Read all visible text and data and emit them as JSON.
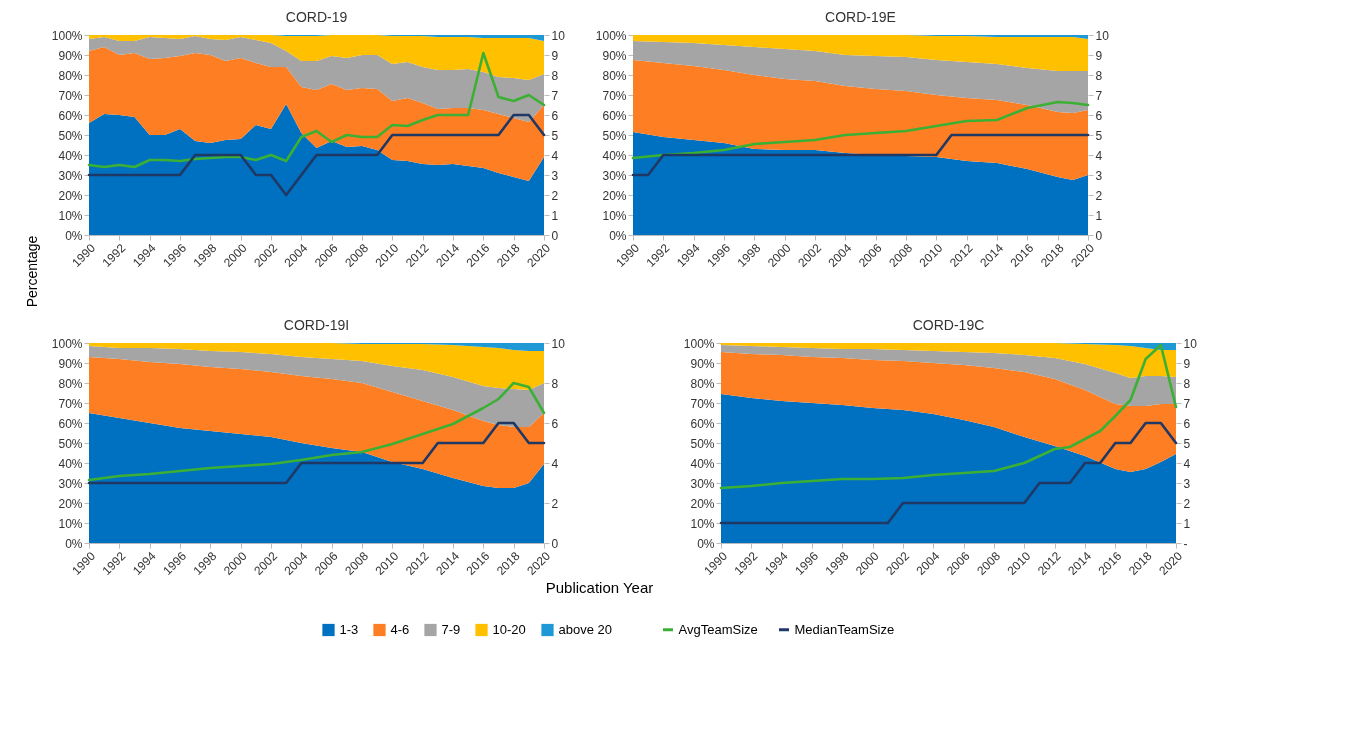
{
  "chart_data": [
    {
      "type": "area",
      "title": "CORD-19",
      "ylabel": "Percentage",
      "stacked": true,
      "legend": "bottom",
      "x": [
        1990,
        1991,
        1992,
        1993,
        1994,
        1995,
        1996,
        1997,
        1998,
        1999,
        2000,
        2001,
        2002,
        2003,
        2004,
        2005,
        2006,
        2007,
        2008,
        2009,
        2010,
        2011,
        2012,
        2013,
        2014,
        2015,
        2016,
        2017,
        2018,
        2019,
        2020
      ],
      "series": [
        {
          "name": "1-3",
          "color": "#0070c0",
          "values": [
            56,
            60.5,
            60,
            59,
            50,
            50,
            53,
            47,
            46,
            47.5,
            48,
            55,
            53,
            65.5,
            51,
            43.5,
            47,
            44,
            44.5,
            42.5,
            37.5,
            37,
            35.5,
            35,
            35.5,
            34.5,
            33.5,
            31,
            29,
            27,
            39
          ]
        },
        {
          "name": "4-6",
          "color": "#fd7e23",
          "values": [
            36,
            33.5,
            30,
            32,
            38,
            38.5,
            36.5,
            44,
            44,
            39.5,
            40.5,
            31,
            31,
            18.5,
            23,
            29,
            28.5,
            28.5,
            29,
            30.5,
            29.5,
            31.5,
            30.5,
            28,
            28,
            29,
            29,
            29.5,
            29.5,
            29.5,
            26
          ]
        },
        {
          "name": "7-9",
          "color": "#a5a5a5",
          "values": [
            6,
            5,
            7,
            6,
            11,
            10,
            8.5,
            8.5,
            8,
            10.5,
            10.5,
            11.5,
            12,
            8,
            13,
            14.5,
            14,
            16,
            16.5,
            17,
            18.5,
            18,
            18,
            19.5,
            19,
            19.5,
            19,
            18.5,
            20,
            21,
            15.5
          ]
        },
        {
          "name": "10-20",
          "color": "#ffc000",
          "values": [
            2,
            1,
            3,
            3,
            1,
            1.5,
            2,
            0.5,
            2,
            2.5,
            1,
            2.5,
            4,
            7.5,
            12.5,
            12.5,
            10.5,
            11.5,
            10,
            10,
            14,
            13,
            15.5,
            16.5,
            16.5,
            16,
            17,
            19.5,
            20,
            21,
            16.5
          ]
        },
        {
          "name": "above 20",
          "color": "#1f98d6",
          "values": [
            0,
            0,
            0,
            0,
            0,
            0,
            0,
            0,
            0,
            0,
            0,
            0,
            0,
            0.5,
            0.5,
            0.5,
            0,
            0,
            0,
            0,
            0.5,
            0.5,
            0.5,
            1,
            1,
            1,
            1.5,
            1.5,
            1.5,
            1.5,
            3
          ]
        },
        {
          "name": "AvgTeamSize",
          "type": "line",
          "axis": "y2",
          "color": "#3cb034",
          "values": [
            3.5,
            3.4,
            3.5,
            3.4,
            3.75,
            3.75,
            3.7,
            3.8,
            3.85,
            3.9,
            3.9,
            3.75,
            4,
            3.7,
            4.9,
            5.2,
            4.65,
            5,
            4.9,
            4.9,
            5.5,
            5.45,
            5.75,
            6,
            6,
            6,
            9.1,
            6.9,
            6.7,
            7,
            6.5
          ]
        },
        {
          "name": "MedianTeamSize",
          "type": "line",
          "axis": "y2",
          "color": "#1f3864",
          "values": [
            3,
            3,
            3,
            3,
            3,
            3,
            3,
            4,
            4,
            4,
            4,
            3,
            3,
            2,
            3,
            4,
            4,
            4,
            4,
            4,
            5,
            5,
            5,
            5,
            5,
            5,
            5,
            5,
            6,
            6,
            5
          ]
        }
      ],
      "xlim": [
        1990,
        2020
      ],
      "xticks": [
        1990,
        1992,
        1994,
        1996,
        1998,
        2000,
        2002,
        2004,
        2006,
        2008,
        2010,
        2012,
        2014,
        2016,
        2018,
        2020
      ],
      "ylim": [
        0,
        100
      ],
      "yticks": [
        {
          "value": 0,
          "label": "0%"
        },
        {
          "value": 10,
          "label": "10%"
        },
        {
          "value": 20,
          "label": "20%"
        },
        {
          "value": 30,
          "label": "30%"
        },
        {
          "value": 40,
          "label": "40%"
        },
        {
          "value": 50,
          "label": "50%"
        },
        {
          "value": 60,
          "label": "60%"
        },
        {
          "value": 70,
          "label": "70%"
        },
        {
          "value": 80,
          "label": "80%"
        },
        {
          "value": 90,
          "label": "90%"
        },
        {
          "value": 100,
          "label": "100%"
        }
      ],
      "y2lim": [
        0,
        10
      ],
      "y2ticks": [
        0,
        1,
        2,
        3,
        4,
        5,
        6,
        7,
        8,
        9,
        10
      ]
    },
    {
      "type": "area",
      "title": "CORD-19E",
      "stacked": true,
      "legend": "bottom",
      "x": [
        1990,
        1992,
        1994,
        1996,
        1998,
        2000,
        2002,
        2004,
        2006,
        2008,
        2010,
        2012,
        2014,
        2016,
        2018,
        2019,
        2020
      ],
      "series": [
        {
          "name": "1-3",
          "color": "#0070c0",
          "values": [
            51.5,
            49,
            47.5,
            46,
            43,
            42.5,
            42.5,
            41,
            40,
            39.5,
            39,
            37,
            36,
            33,
            29,
            27.5,
            30
          ]
        },
        {
          "name": "4-6",
          "color": "#fd7e23",
          "values": [
            36,
            37,
            37,
            36.5,
            37,
            35.5,
            34.5,
            33.5,
            33,
            32.5,
            31,
            31.5,
            31.5,
            32,
            32.5,
            33.5,
            32.5
          ]
        },
        {
          "name": "7-9",
          "color": "#a5a5a5",
          "values": [
            9.5,
            10.5,
            11.5,
            12.5,
            14,
            15,
            15,
            15.5,
            16.5,
            17,
            17.5,
            18,
            18,
            18.5,
            20.5,
            21,
            19.5
          ]
        },
        {
          "name": "10-20",
          "color": "#ffc000",
          "values": [
            3,
            3.5,
            4,
            5,
            6,
            7,
            8,
            10,
            10.5,
            11,
            12,
            13,
            13.5,
            15.5,
            17,
            17,
            16
          ]
        },
        {
          "name": "above 20",
          "color": "#1f98d6",
          "values": [
            0,
            0,
            0,
            0,
            0,
            0,
            0,
            0,
            0,
            0,
            0.5,
            0.5,
            1,
            1,
            1,
            1,
            2
          ]
        },
        {
          "name": "AvgTeamSize",
          "type": "line",
          "axis": "y2",
          "color": "#3cb034",
          "values": [
            3.85,
            4,
            4.1,
            4.25,
            4.55,
            4.65,
            4.75,
            5,
            5.1,
            5.2,
            5.45,
            5.7,
            5.75,
            6.35,
            6.65,
            6.6,
            6.5
          ]
        },
        {
          "name": "MedianTeamSize",
          "type": "line",
          "axis": "y2",
          "color": "#1f3864",
          "x": [
            1990,
            1991,
            1992,
            2010,
            2011,
            2020
          ],
          "values": [
            3,
            3,
            4,
            4,
            5,
            5
          ]
        }
      ],
      "xlim": [
        1990,
        2020
      ],
      "xticks": [
        1990,
        1992,
        1994,
        1996,
        1998,
        2000,
        2002,
        2004,
        2006,
        2008,
        2010,
        2012,
        2014,
        2016,
        2018,
        2020
      ],
      "ylim": [
        0,
        100
      ],
      "yticks": [
        {
          "value": 0,
          "label": "0%"
        },
        {
          "value": 10,
          "label": "10%"
        },
        {
          "value": 20,
          "label": "20%"
        },
        {
          "value": 30,
          "label": "30%"
        },
        {
          "value": 40,
          "label": "40%"
        },
        {
          "value": 50,
          "label": "50%"
        },
        {
          "value": 60,
          "label": "60%"
        },
        {
          "value": 70,
          "label": "70%"
        },
        {
          "value": 80,
          "label": "80%"
        },
        {
          "value": 90,
          "label": "90%"
        },
        {
          "value": 100,
          "label": "100%"
        }
      ],
      "y2lim": [
        0,
        10
      ],
      "y2ticks": [
        0,
        1,
        2,
        3,
        4,
        5,
        6,
        7,
        8,
        9,
        10
      ]
    },
    {
      "type": "area",
      "title": "CORD-19I",
      "xlabel": "Publication Year",
      "stacked": true,
      "legend": "bottom",
      "x": [
        1990,
        1992,
        1994,
        1996,
        1998,
        2000,
        2002,
        2004,
        2006,
        2008,
        2010,
        2012,
        2014,
        2016,
        2017,
        2018,
        2019,
        2020
      ],
      "series": [
        {
          "name": "1-3",
          "color": "#0070c0",
          "values": [
            65,
            62.5,
            60,
            57.5,
            56,
            54.5,
            53,
            50,
            47.5,
            45.5,
            40.5,
            37,
            32.5,
            28.5,
            27.5,
            27.5,
            30,
            39.5
          ]
        },
        {
          "name": "4-6",
          "color": "#fd7e23",
          "values": [
            28,
            29.5,
            30.5,
            32,
            32,
            32.5,
            32.5,
            33.5,
            34.5,
            34.5,
            35,
            34,
            34,
            32.5,
            31.5,
            30.5,
            28,
            25.5
          ]
        },
        {
          "name": "7-9",
          "color": "#a5a5a5",
          "values": [
            5.5,
            5.5,
            7,
            7.5,
            8,
            8.5,
            9,
            9.5,
            10,
            11,
            13,
            15.5,
            16.5,
            17.5,
            18.5,
            19,
            18.5,
            15
          ]
        },
        {
          "name": "10-20",
          "color": "#ffc000",
          "values": [
            1.5,
            2.5,
            2.5,
            3,
            4,
            4.5,
            5.5,
            7,
            8,
            8.5,
            11,
            13,
            16,
            19.5,
            20,
            19.5,
            19.5,
            16
          ]
        },
        {
          "name": "above 20",
          "color": "#1f98d6",
          "values": [
            0,
            0,
            0,
            0,
            0,
            0,
            0,
            0,
            0,
            0.5,
            0.5,
            0.5,
            1,
            2,
            2.5,
            3.5,
            4,
            4
          ]
        },
        {
          "name": "AvgTeamSize",
          "type": "line",
          "axis": "y2",
          "color": "#3cb034",
          "values": [
            3.15,
            3.35,
            3.45,
            3.6,
            3.75,
            3.85,
            3.95,
            4.15,
            4.4,
            4.55,
            4.95,
            5.45,
            5.95,
            6.75,
            7.2,
            8,
            7.8,
            6.5
          ]
        },
        {
          "name": "MedianTeamSize",
          "type": "line",
          "axis": "y2",
          "color": "#1f3864",
          "x": [
            1990,
            2003,
            2004,
            2012,
            2013,
            2016,
            2017,
            2018,
            2019,
            2020
          ],
          "values": [
            3,
            3,
            4,
            4,
            5,
            5,
            6,
            6,
            5,
            5
          ]
        }
      ],
      "xlim": [
        1990,
        2020
      ],
      "xticks": [
        1990,
        1992,
        1994,
        1996,
        1998,
        2000,
        2002,
        2004,
        2006,
        2008,
        2010,
        2012,
        2014,
        2016,
        2018,
        2020
      ],
      "ylim": [
        0,
        100
      ],
      "yticks": [
        {
          "value": 0,
          "label": "0%"
        },
        {
          "value": 10,
          "label": "10%"
        },
        {
          "value": 20,
          "label": "20%"
        },
        {
          "value": 30,
          "label": "30%"
        },
        {
          "value": 40,
          "label": "40%"
        },
        {
          "value": 50,
          "label": "50%"
        },
        {
          "value": 60,
          "label": "60%"
        },
        {
          "value": 70,
          "label": "70%"
        },
        {
          "value": 80,
          "label": "80%"
        },
        {
          "value": 90,
          "label": "90%"
        },
        {
          "value": 100,
          "label": "100%"
        }
      ],
      "y2lim": [
        0,
        10
      ],
      "y2ticks": [
        0,
        2,
        4,
        6,
        8,
        10
      ]
    },
    {
      "type": "area",
      "title": "CORD-19C",
      "stacked": true,
      "legend": "bottom",
      "x": [
        1990,
        1992,
        1994,
        1996,
        1998,
        2000,
        2002,
        2004,
        2006,
        2008,
        2010,
        2012,
        2014,
        2016,
        2017,
        2018,
        2019,
        2020
      ],
      "series": [
        {
          "name": "1-3",
          "color": "#0070c0",
          "values": [
            74.5,
            72.5,
            71,
            70,
            69,
            67.5,
            66.5,
            64.5,
            61.5,
            58,
            53,
            48.5,
            43.5,
            37,
            35.5,
            37,
            40.5,
            44.5
          ]
        },
        {
          "name": "4-6",
          "color": "#fd7e23",
          "values": [
            21,
            22,
            23,
            23,
            23.5,
            24,
            24.5,
            25.5,
            27.5,
            29.5,
            32.5,
            33.5,
            33,
            32.5,
            33,
            31.5,
            29,
            25
          ]
        },
        {
          "name": "7-9",
          "color": "#a5a5a5",
          "values": [
            3.5,
            4,
            4,
            4.5,
            4.5,
            5.5,
            5.5,
            6,
            6.5,
            7.5,
            8.5,
            10.5,
            13,
            15.5,
            14,
            15,
            14,
            13.5
          ]
        },
        {
          "name": "10-20",
          "color": "#ffc000",
          "values": [
            1,
            1.5,
            2,
            2.5,
            3,
            3,
            3.5,
            4,
            4.5,
            5,
            6,
            7.5,
            10,
            14,
            16,
            14,
            13,
            13.5
          ]
        },
        {
          "name": "above 20",
          "color": "#1f98d6",
          "values": [
            0,
            0,
            0,
            0,
            0,
            0,
            0,
            0,
            0,
            0,
            0,
            0,
            0.5,
            1,
            1.5,
            2.5,
            3.5,
            3.5
          ]
        },
        {
          "name": "AvgTeamSize",
          "type": "line",
          "axis": "y2",
          "color": "#3cb034",
          "x": [
            1990,
            1992,
            1994,
            1996,
            1998,
            2000,
            2002,
            2004,
            2006,
            2008,
            2010,
            2012,
            2013,
            2014,
            2015,
            2016,
            2017,
            2018,
            2019,
            2020
          ],
          "values": [
            2.75,
            2.85,
            3,
            3.1,
            3.2,
            3.2,
            3.25,
            3.4,
            3.5,
            3.6,
            4,
            4.7,
            4.8,
            5.2,
            5.6,
            6.35,
            7.15,
            9.2,
            9.9,
            6.8
          ]
        },
        {
          "name": "MedianTeamSize",
          "type": "line",
          "axis": "y2",
          "color": "#1f3864",
          "x": [
            1990,
            2001,
            2002,
            2010,
            2011,
            2013,
            2014,
            2015,
            2016,
            2017,
            2018,
            2019,
            2020
          ],
          "values": [
            1,
            1,
            2,
            2,
            3,
            3,
            4,
            4,
            5,
            5,
            6,
            6,
            5
          ]
        }
      ],
      "xlim": [
        1990,
        2020
      ],
      "xticks": [
        1990,
        1992,
        1994,
        1996,
        1998,
        2000,
        2002,
        2004,
        2006,
        2008,
        2010,
        2012,
        2014,
        2016,
        2018,
        2020
      ],
      "ylim": [
        0,
        100
      ],
      "yticks": [
        {
          "value": 0,
          "label": "0%"
        },
        {
          "value": 10,
          "label": "10%"
        },
        {
          "value": 20,
          "label": "20%"
        },
        {
          "value": 30,
          "label": "30%"
        },
        {
          "value": 40,
          "label": "40%"
        },
        {
          "value": 50,
          "label": "50%"
        },
        {
          "value": 60,
          "label": "60%"
        },
        {
          "value": 70,
          "label": "70%"
        },
        {
          "value": 80,
          "label": "80%"
        },
        {
          "value": 90,
          "label": "90%"
        },
        {
          "value": 100,
          "label": "100%"
        }
      ],
      "y2lim": [
        0,
        10
      ],
      "y2ticks": [
        {
          "value": 0,
          "label": "-"
        },
        1,
        2,
        3,
        4,
        5,
        6,
        7,
        8,
        9,
        10
      ]
    }
  ]
}
